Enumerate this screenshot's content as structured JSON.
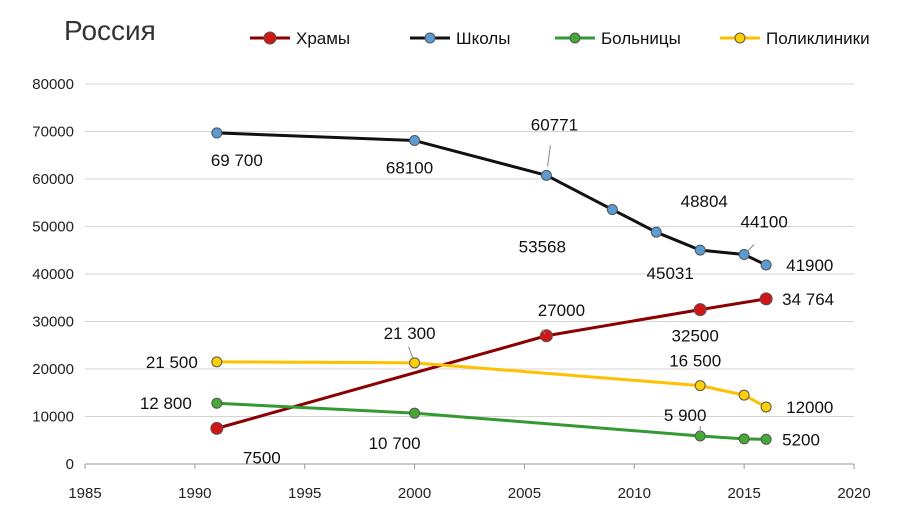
{
  "chart_data": {
    "type": "line",
    "title": "Россия",
    "xlabel": "",
    "ylabel": "",
    "xlim": [
      1985,
      2020
    ],
    "ylim": [
      0,
      80000
    ],
    "x_ticks": [
      "1985",
      "1990",
      "1995",
      "2000",
      "2005",
      "2010",
      "2015",
      "2020"
    ],
    "y_ticks": [
      "0",
      "10000",
      "20000",
      "30000",
      "40000",
      "50000",
      "60000",
      "70000",
      "80000"
    ],
    "grid": "horizontal",
    "legend_position": "top",
    "series": [
      {
        "name": "Храмы",
        "color": "#8b0000",
        "marker_color": "#d41515",
        "points": [
          {
            "x": 1991,
            "y": 7500,
            "label": "7500"
          },
          {
            "x": 2006,
            "y": 27000,
            "label": "27000"
          },
          {
            "x": 2013,
            "y": 32500,
            "label": "32500"
          },
          {
            "x": 2016,
            "y": 34764,
            "label": "34 764"
          }
        ]
      },
      {
        "name": "Школы",
        "color": "#111111",
        "marker_color": "#5b9bd5",
        "points": [
          {
            "x": 1991,
            "y": 69700,
            "label": "69 700"
          },
          {
            "x": 2000,
            "y": 68100,
            "label": "68100"
          },
          {
            "x": 2006,
            "y": 60771,
            "label": "60771"
          },
          {
            "x": 2009,
            "y": 53568,
            "label": "53568"
          },
          {
            "x": 2011,
            "y": 48804,
            "label": "48804"
          },
          {
            "x": 2013,
            "y": 45031,
            "label": "45031"
          },
          {
            "x": 2015,
            "y": 44100,
            "label": "44100"
          },
          {
            "x": 2016,
            "y": 41900,
            "label": "41900"
          }
        ]
      },
      {
        "name": "Больницы",
        "color": "#339933",
        "marker_color": "#44aa33",
        "points": [
          {
            "x": 1991,
            "y": 12800,
            "label": "12 800"
          },
          {
            "x": 2000,
            "y": 10700,
            "label": "10 700"
          },
          {
            "x": 2013,
            "y": 5900,
            "label": "5 900"
          },
          {
            "x": 2015,
            "y": 5300,
            "label": ""
          },
          {
            "x": 2016,
            "y": 5200,
            "label": "5200"
          }
        ]
      },
      {
        "name": "Поликлиники",
        "color": "#ffc000",
        "marker_color": "#ffd100",
        "points": [
          {
            "x": 1991,
            "y": 21500,
            "label": "21 500"
          },
          {
            "x": 2000,
            "y": 21300,
            "label": "21 300"
          },
          {
            "x": 2013,
            "y": 16500,
            "label": "16 500"
          },
          {
            "x": 2015,
            "y": 14500,
            "label": ""
          },
          {
            "x": 2016,
            "y": 12000,
            "label": "12000"
          }
        ]
      }
    ]
  }
}
